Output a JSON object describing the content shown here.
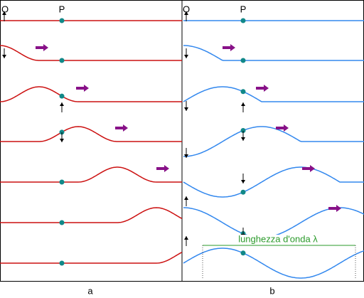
{
  "panel_a": {
    "origin_label": "O",
    "point_label": "P",
    "caption": "a"
  },
  "panel_b": {
    "origin_label": "O",
    "point_label": "P",
    "caption": "b",
    "wavelength_label": "lunghezza d'onda λ"
  }
}
